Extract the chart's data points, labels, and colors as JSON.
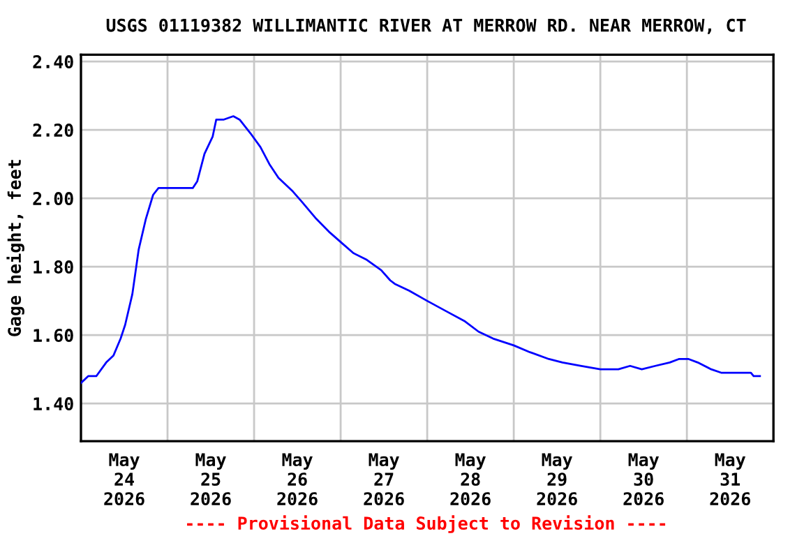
{
  "chart_data": {
    "type": "line",
    "title": "USGS 01119382 WILLIMANTIC RIVER AT MERROW RD. NEAR MERROW, CT",
    "ylabel": "Gage height, feet",
    "annotations": [
      "---- Provisional Data Subject to Revision ----"
    ],
    "x": [
      "2026-05-24T00:00",
      "2026-05-24T02:00",
      "2026-05-24T04:15",
      "2026-05-24T07:00",
      "2026-05-24T09:00",
      "2026-05-24T11:00",
      "2026-05-24T12:15",
      "2026-05-24T14:15",
      "2026-05-24T16:00",
      "2026-05-24T18:00",
      "2026-05-24T20:00",
      "2026-05-24T21:30",
      "2026-05-25T07:00",
      "2026-05-25T08:15",
      "2026-05-25T10:15",
      "2026-05-25T12:30",
      "2026-05-25T13:30",
      "2026-05-25T15:30",
      "2026-05-25T18:15",
      "2026-05-25T20:00",
      "2026-05-25T23:00",
      "2026-05-26T01:45",
      "2026-05-26T04:15",
      "2026-05-26T06:45",
      "2026-05-26T10:45",
      "2026-05-26T13:15",
      "2026-05-26T17:15",
      "2026-05-26T21:00",
      "2026-05-27T00:15",
      "2026-05-27T03:30",
      "2026-05-27T07:15",
      "2026-05-27T11:15",
      "2026-05-27T13:45",
      "2026-05-27T15:00",
      "2026-05-27T19:00",
      "2026-05-28T00:00",
      "2026-05-28T05:15",
      "2026-05-28T10:30",
      "2026-05-28T14:15",
      "2026-05-28T18:15",
      "2026-05-29T00:00",
      "2026-05-29T04:30",
      "2026-05-29T09:45",
      "2026-05-29T13:30",
      "2026-05-29T18:45",
      "2026-05-30T00:00",
      "2026-05-30T05:00",
      "2026-05-30T08:15",
      "2026-05-30T11:30",
      "2026-05-30T15:15",
      "2026-05-30T19:15",
      "2026-05-30T21:45",
      "2026-05-31T00:30",
      "2026-05-31T03:00",
      "2026-05-31T06:45",
      "2026-05-31T09:30",
      "2026-05-31T17:45",
      "2026-05-31T18:30",
      "2026-05-31T20:15"
    ],
    "series": [
      {
        "color": "#0000ff",
        "values": [
          1.46,
          1.48,
          1.48,
          1.52,
          1.54,
          1.59,
          1.63,
          1.72,
          1.85,
          1.94,
          2.01,
          2.03,
          2.03,
          2.05,
          2.13,
          2.18,
          2.23,
          2.23,
          2.24,
          2.23,
          2.19,
          2.15,
          2.1,
          2.06,
          2.02,
          1.99,
          1.94,
          1.9,
          1.87,
          1.84,
          1.82,
          1.79,
          1.76,
          1.75,
          1.73,
          1.7,
          1.67,
          1.64,
          1.61,
          1.59,
          1.57,
          1.55,
          1.53,
          1.52,
          1.51,
          1.5,
          1.5,
          1.51,
          1.5,
          1.51,
          1.52,
          1.53,
          1.53,
          1.52,
          1.5,
          1.49,
          1.49,
          1.48,
          1.48
        ]
      }
    ],
    "xlim": [
      "2026-05-24T00:00",
      "2026-06-01T00:00"
    ],
    "xticks": [
      {
        "value": "2026-05-24T12:00",
        "label": "May\n24\n2026"
      },
      {
        "value": "2026-05-25T12:00",
        "label": "May\n25\n2026"
      },
      {
        "value": "2026-05-26T12:00",
        "label": "May\n26\n2026"
      },
      {
        "value": "2026-05-27T12:00",
        "label": "May\n27\n2026"
      },
      {
        "value": "2026-05-28T12:00",
        "label": "May\n28\n2026"
      },
      {
        "value": "2026-05-29T12:00",
        "label": "May\n29\n2026"
      },
      {
        "value": "2026-05-30T12:00",
        "label": "May\n30\n2026"
      },
      {
        "value": "2026-05-31T12:00",
        "label": "May\n31\n2026"
      },
      {
        "value": "2026-05-25T00:00",
        "label": null
      },
      {
        "value": "2026-05-26T00:00",
        "label": null
      },
      {
        "value": "2026-05-27T00:00",
        "label": null
      },
      {
        "value": "2026-05-28T00:00",
        "label": null
      },
      {
        "value": "2026-05-29T00:00",
        "label": null
      },
      {
        "value": "2026-05-30T00:00",
        "label": null
      },
      {
        "value": "2026-05-31T00:00",
        "label": null
      }
    ],
    "ylim": [
      1.29,
      2.42
    ],
    "yticks": [
      {
        "value": 1.4,
        "label": "1.40"
      },
      {
        "value": 1.6,
        "label": "1.60"
      },
      {
        "value": 1.8,
        "label": "1.80"
      },
      {
        "value": 2.0,
        "label": "2.00"
      },
      {
        "value": 2.2,
        "label": "2.20"
      },
      {
        "value": 2.4,
        "label": "2.40"
      }
    ],
    "grid": true,
    "marker": "none",
    "line_style": "solid"
  }
}
